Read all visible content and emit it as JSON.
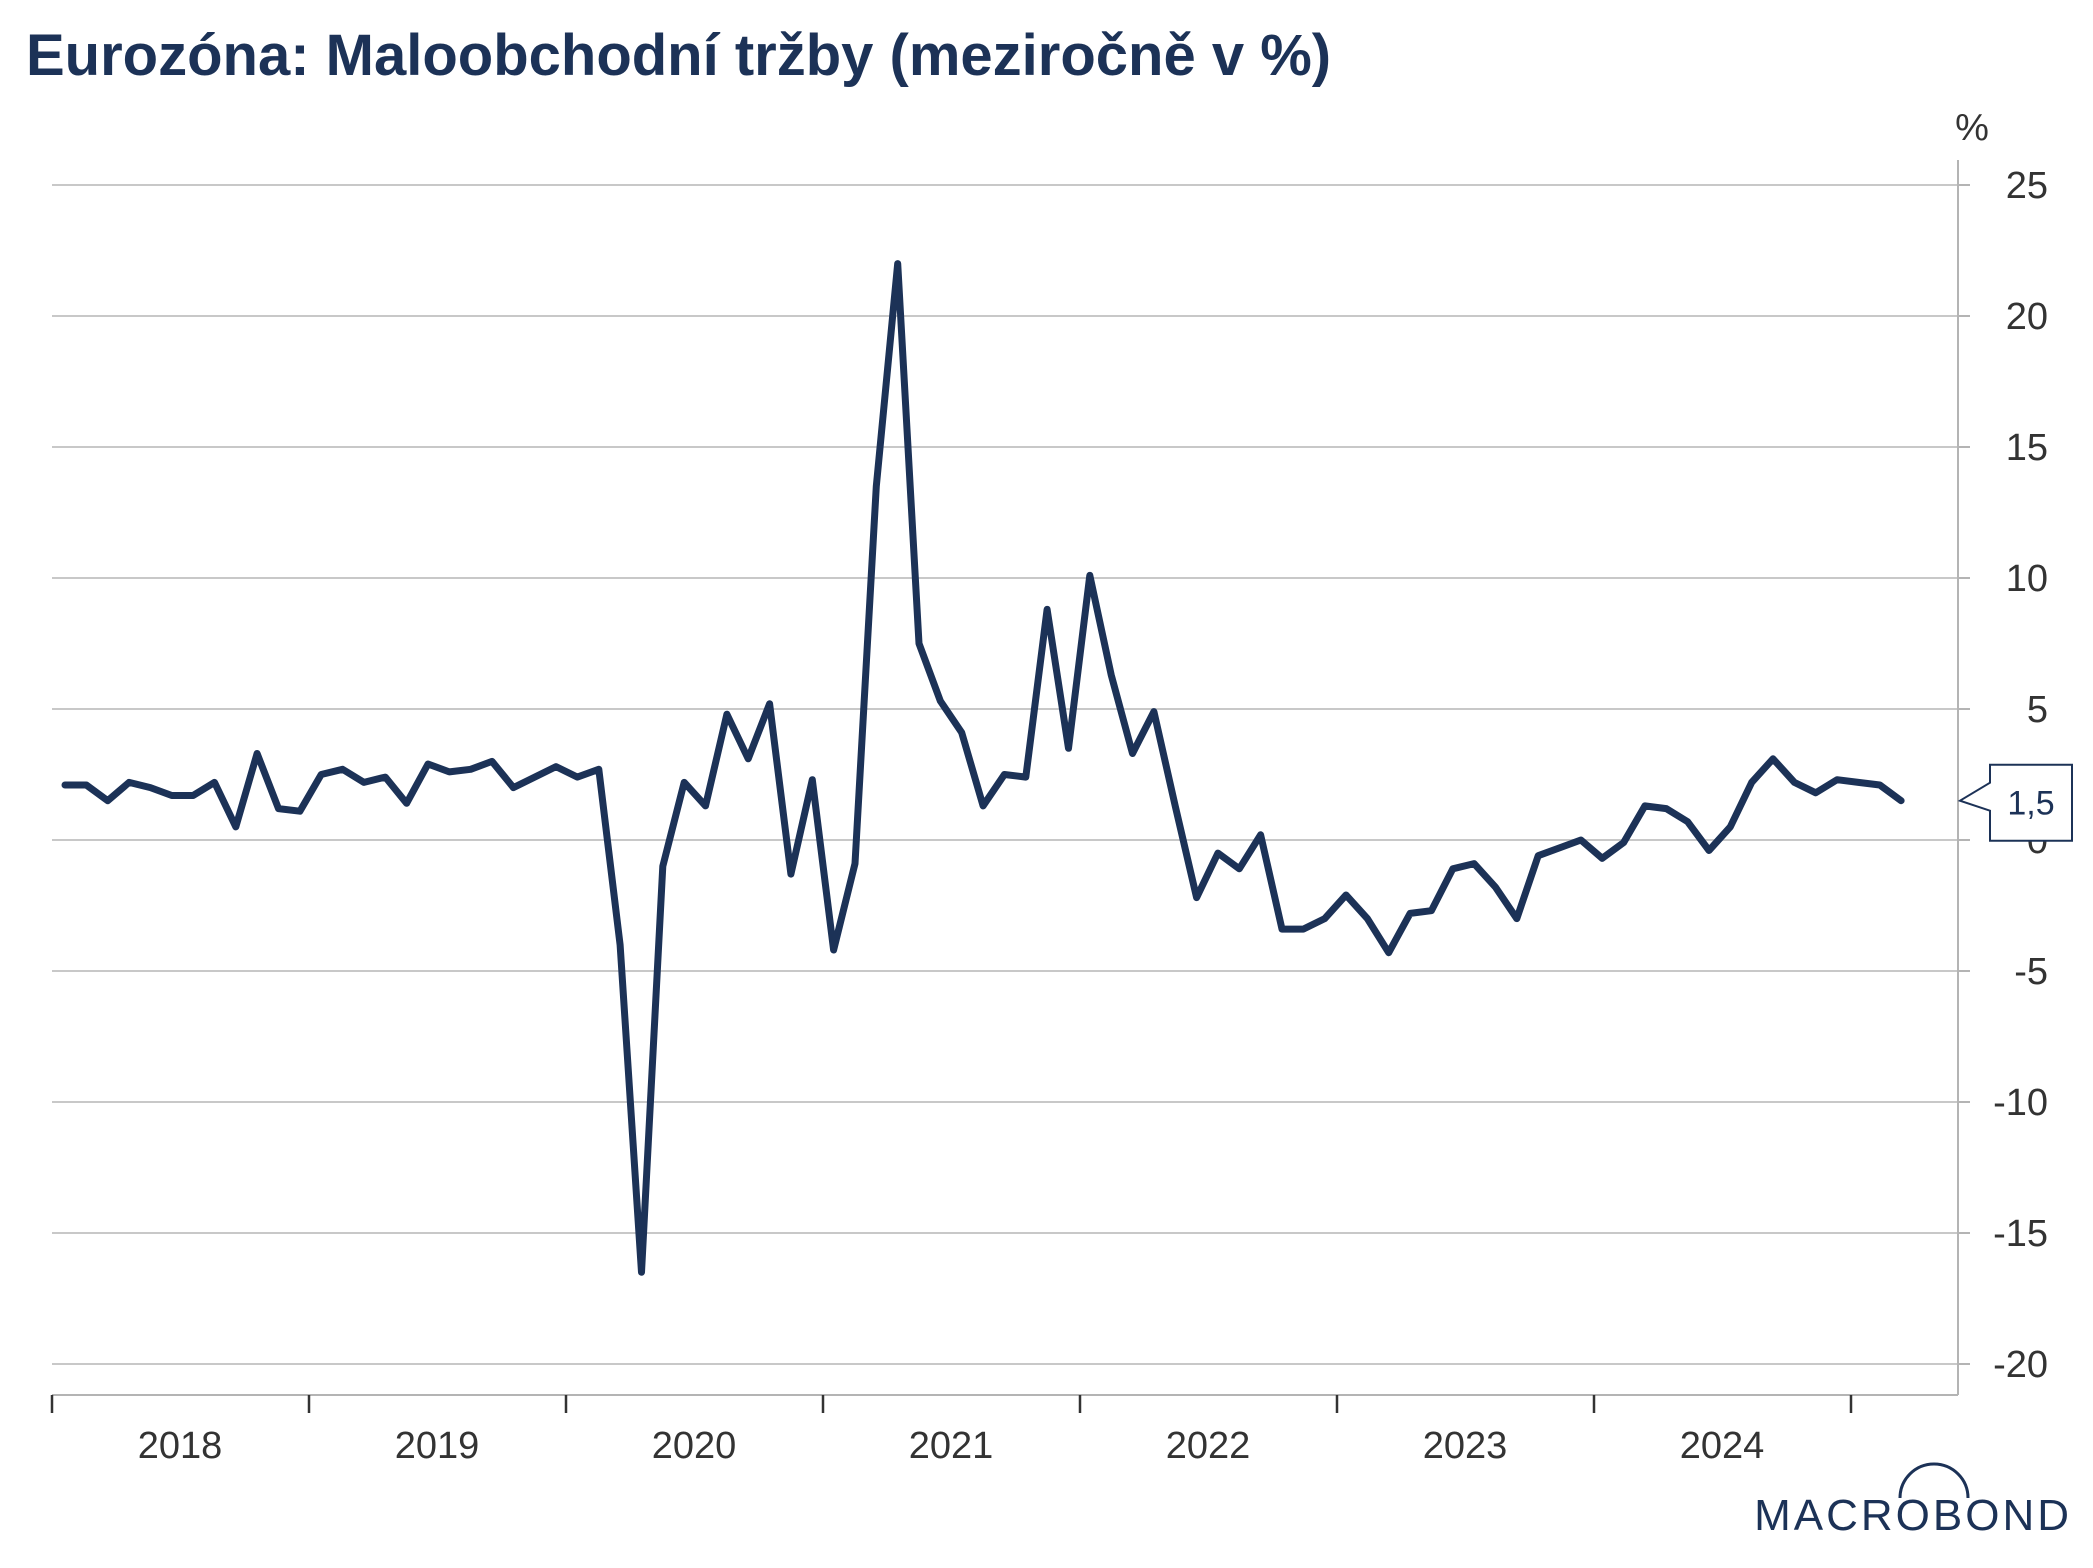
{
  "colors": {
    "series": "#1c3257",
    "brand": "#1c3257",
    "grid": "#c8c8c8"
  },
  "brand": {
    "name": "MACROBOND"
  },
  "chart_data": {
    "type": "line",
    "title": "Eurozóna: Maloobchodní tržby (meziročně v %)",
    "unit_label": "%",
    "ylim": [
      -20,
      25
    ],
    "y_ticks": [
      25,
      20,
      15,
      10,
      5,
      0,
      -5,
      -10,
      -15,
      -20
    ],
    "y_axis_position": "right",
    "x_year_labels": [
      "2018",
      "2019",
      "2020",
      "2021",
      "2022",
      "2023",
      "2024"
    ],
    "x_start": "2018-01",
    "grid": true,
    "last_value_label": "1,5",
    "series": [
      {
        "color": "#1c3257",
        "values": [
          2.1,
          2.1,
          1.5,
          2.2,
          2.0,
          1.7,
          1.7,
          2.2,
          0.5,
          3.3,
          1.2,
          1.1,
          2.5,
          2.7,
          2.2,
          2.4,
          1.4,
          2.9,
          2.6,
          2.7,
          3.0,
          2.0,
          2.4,
          2.8,
          2.4,
          2.7,
          -4.0,
          -16.5,
          -1.0,
          2.2,
          1.3,
          4.8,
          3.1,
          5.2,
          -1.3,
          2.3,
          -4.2,
          -0.9,
          13.5,
          22.0,
          7.5,
          5.3,
          4.1,
          1.3,
          2.5,
          2.4,
          8.8,
          3.5,
          10.1,
          6.3,
          3.3,
          4.9,
          1.3,
          -2.2,
          -0.5,
          -1.1,
          0.2,
          -3.4,
          -3.4,
          -3.0,
          -2.1,
          -3.0,
          -4.3,
          -2.8,
          -2.7,
          -1.1,
          -0.9,
          -1.8,
          -3.0,
          -0.6,
          -0.3,
          0.0,
          -0.7,
          -0.1,
          1.3,
          1.2,
          0.7,
          -0.4,
          0.5,
          2.2,
          3.1,
          2.2,
          1.8,
          2.3,
          2.2,
          2.1,
          1.5
        ]
      }
    ]
  }
}
